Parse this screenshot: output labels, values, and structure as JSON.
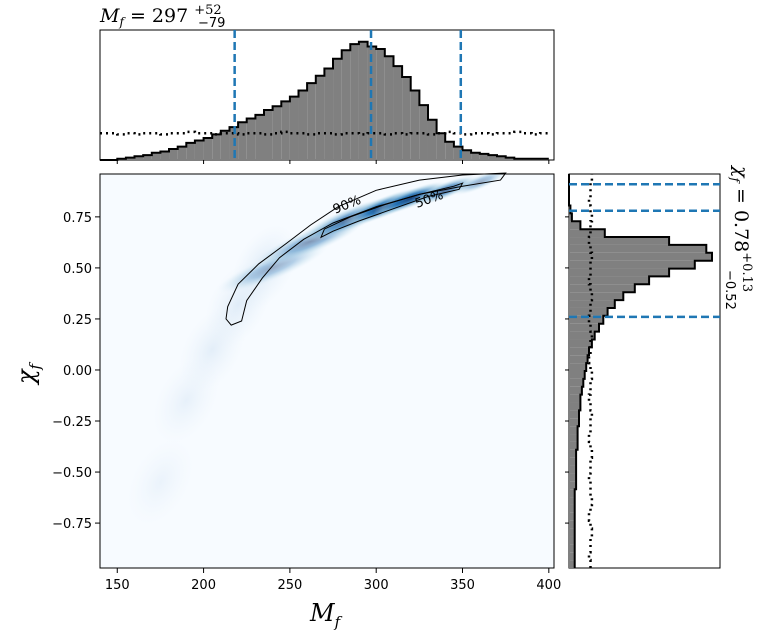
{
  "colors": {
    "hist_fill": "#808080",
    "hist_edge": "#000000",
    "interval_line": "#1f77b4",
    "density_low": "#f7fbff",
    "density_high": "#08306b",
    "contour": "#000000"
  },
  "chart_data": {
    "type": "corner",
    "grid": false,
    "joint": {
      "type": "heatmap",
      "xlabel": "M_f",
      "ylabel": "χ_f",
      "xlim": [
        140,
        403
      ],
      "ylim": [
        -0.97,
        0.96
      ],
      "xticks": [
        150,
        200,
        250,
        300,
        350,
        400
      ],
      "yticks": [
        -0.75,
        -0.5,
        -0.25,
        0.0,
        0.25,
        0.5,
        0.75
      ],
      "xtick_labels": [
        "150",
        "200",
        "250",
        "300",
        "350",
        "400"
      ],
      "ytick_labels": [
        "−0.75",
        "−0.50",
        "−0.25",
        "0.00",
        "0.25",
        "0.50",
        "0.75"
      ],
      "density_peak": {
        "x": 310,
        "y": 0.8
      },
      "contour_labels": [
        "90%",
        "50%"
      ],
      "contour_90": [
        [
          213,
          0.25
        ],
        [
          214,
          0.31
        ],
        [
          220,
          0.42
        ],
        [
          232,
          0.52
        ],
        [
          248,
          0.62
        ],
        [
          262,
          0.71
        ],
        [
          278,
          0.8
        ],
        [
          300,
          0.88
        ],
        [
          325,
          0.93
        ],
        [
          350,
          0.955
        ],
        [
          375,
          0.965
        ],
        [
          372,
          0.93
        ],
        [
          350,
          0.9
        ],
        [
          325,
          0.86
        ],
        [
          300,
          0.8
        ],
        [
          275,
          0.72
        ],
        [
          258,
          0.64
        ],
        [
          244,
          0.55
        ],
        [
          234,
          0.45
        ],
        [
          225,
          0.34
        ],
        [
          222,
          0.24
        ],
        [
          216,
          0.22
        ],
        [
          213,
          0.25
        ]
      ],
      "contour_50": [
        [
          268,
          0.65
        ],
        [
          270,
          0.69
        ],
        [
          285,
          0.75
        ],
        [
          305,
          0.81
        ],
        [
          325,
          0.86
        ],
        [
          345,
          0.9
        ],
        [
          350,
          0.915
        ],
        [
          348,
          0.885
        ],
        [
          330,
          0.85
        ],
        [
          310,
          0.79
        ],
        [
          290,
          0.73
        ],
        [
          275,
          0.68
        ],
        [
          268,
          0.65
        ]
      ]
    },
    "marginal_x": {
      "type": "histogram",
      "title": "M_f = 297^{+52}_{-79}",
      "title_main": "297",
      "title_sup": "+52",
      "title_sub": "−79",
      "bin_start": 140,
      "bin_width": 5,
      "values": [
        0,
        0,
        0.01,
        0.02,
        0.03,
        0.04,
        0.06,
        0.07,
        0.09,
        0.11,
        0.14,
        0.16,
        0.18,
        0.21,
        0.24,
        0.27,
        0.31,
        0.34,
        0.37,
        0.41,
        0.44,
        0.48,
        0.52,
        0.57,
        0.63,
        0.69,
        0.75,
        0.83,
        0.9,
        0.95,
        0.97,
        0.93,
        0.91,
        0.85,
        0.77,
        0.68,
        0.57,
        0.45,
        0.33,
        0.22,
        0.15,
        0.11,
        0.08,
        0.06,
        0.05,
        0.04,
        0.03,
        0.02,
        0.01,
        0.01,
        0.01,
        0.01
      ],
      "prior": [
        0.22,
        0.22,
        0.21,
        0.22,
        0.21,
        0.22,
        0.22,
        0.21,
        0.22,
        0.22,
        0.23,
        0.22,
        0.22,
        0.21,
        0.22,
        0.22,
        0.21,
        0.22,
        0.22,
        0.21,
        0.22,
        0.23,
        0.22,
        0.22,
        0.21,
        0.22,
        0.22,
        0.21,
        0.22,
        0.22,
        0.21,
        0.22,
        0.22,
        0.21,
        0.22,
        0.21,
        0.22,
        0.22,
        0.21,
        0.22,
        0.23,
        0.22,
        0.21,
        0.22,
        0.22,
        0.21,
        0.22,
        0.22,
        0.23,
        0.22,
        0.21,
        0.22
      ],
      "interval_lines": [
        218,
        297,
        349
      ]
    },
    "marginal_y": {
      "type": "histogram",
      "orientation": "horizontal",
      "title": "χ_f = 0.78^{+0.13}_{-0.52}",
      "title_main": "0.78",
      "title_sup": "+0.13",
      "title_sub": "−0.52",
      "bin_start": -0.97,
      "bin_width": 0.0386,
      "values": [
        0.04,
        0.04,
        0.04,
        0.04,
        0.04,
        0.04,
        0.04,
        0.04,
        0.04,
        0.04,
        0.05,
        0.05,
        0.05,
        0.05,
        0.05,
        0.06,
        0.06,
        0.06,
        0.07,
        0.07,
        0.08,
        0.08,
        0.09,
        0.1,
        0.11,
        0.12,
        0.13,
        0.14,
        0.16,
        0.18,
        0.21,
        0.24,
        0.27,
        0.32,
        0.38,
        0.46,
        0.56,
        0.7,
        0.88,
        1.0,
        0.96,
        0.7,
        0.25,
        0.08,
        0.02,
        0.01,
        0.0,
        0.0,
        0.0,
        0.0
      ],
      "prior": [
        0.15,
        0.14,
        0.15,
        0.15,
        0.16,
        0.15,
        0.14,
        0.15,
        0.16,
        0.15,
        0.15,
        0.14,
        0.15,
        0.15,
        0.16,
        0.15,
        0.14,
        0.15,
        0.15,
        0.16,
        0.15,
        0.14,
        0.15,
        0.15,
        0.16,
        0.15,
        0.14,
        0.15,
        0.15,
        0.16,
        0.15,
        0.14,
        0.15,
        0.15,
        0.16,
        0.15,
        0.14,
        0.15,
        0.15,
        0.16,
        0.15,
        0.14,
        0.15,
        0.15,
        0.16,
        0.15,
        0.14,
        0.15,
        0.15,
        0.16
      ],
      "interval_lines": [
        0.26,
        0.78,
        0.91
      ]
    }
  }
}
